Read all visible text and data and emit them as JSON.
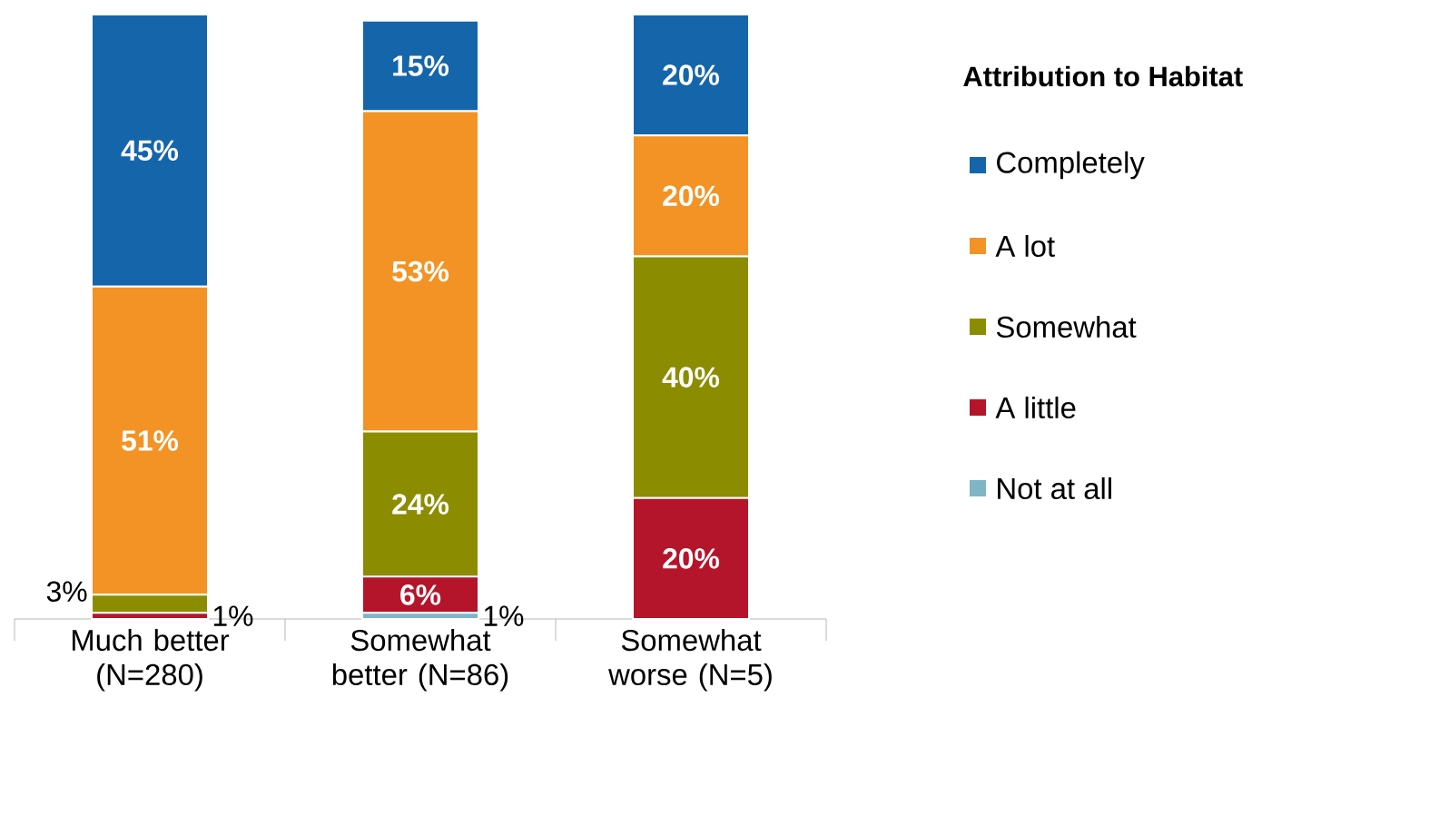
{
  "chart_data": {
    "type": "bar",
    "stacked": true,
    "legend_title": "Attribution to Habitat",
    "legend": "right",
    "tick_labels": "x",
    "categories": [
      "Much better (N=280)",
      "Somewhat better (N=86)",
      "Somewhat worse (N=5)"
    ],
    "series": [
      {
        "name": "Not at all",
        "color": "#7fb5c6",
        "values": [
          0,
          1,
          0
        ],
        "value_labels": [
          null,
          "1%",
          null
        ]
      },
      {
        "name": "A little",
        "color": "#b5152b",
        "values": [
          1,
          6,
          20
        ],
        "value_labels": [
          "1%",
          "6%",
          "20%"
        ]
      },
      {
        "name": "Somewhat",
        "color": "#8c8c00",
        "values": [
          3,
          24,
          40
        ],
        "value_labels": [
          "3%",
          "24%",
          "40%"
        ]
      },
      {
        "name": "A lot",
        "color": "#f39325",
        "values": [
          51,
          53,
          20
        ],
        "value_labels": [
          "51%",
          "53%",
          "20%"
        ]
      },
      {
        "name": "Completely",
        "color": "#1565ab",
        "values": [
          45,
          15,
          20
        ],
        "value_labels": [
          "45%",
          "15%",
          "20%"
        ]
      }
    ]
  }
}
